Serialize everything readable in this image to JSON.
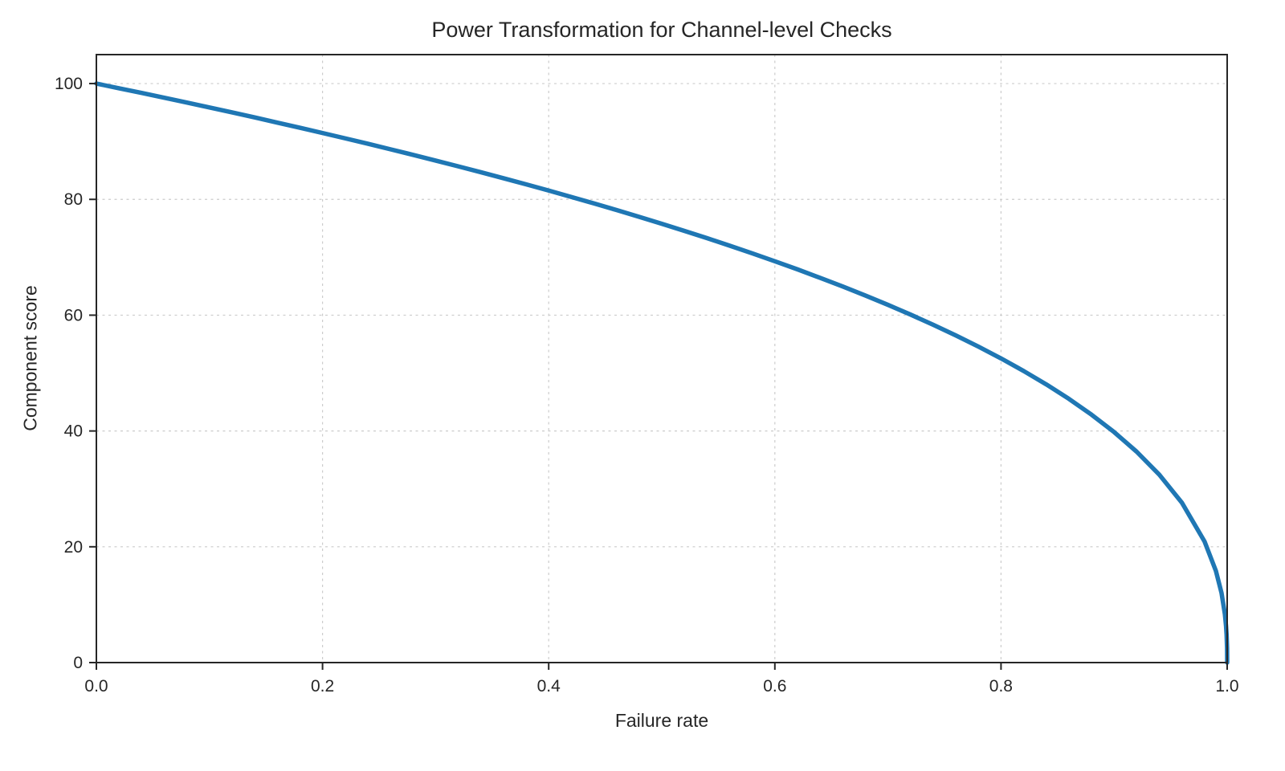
{
  "chart_data": {
    "type": "line",
    "title": "Power Transformation for Channel-level Checks",
    "xlabel": "Failure rate",
    "ylabel": "Component score",
    "xlim": [
      0.0,
      1.0
    ],
    "ylim": [
      0,
      105
    ],
    "grid": true,
    "grid_style": "dashed",
    "grid_color": "#cccccc",
    "axis_color": "#262626",
    "line_color": "#1f77b4",
    "line_width": 5.5,
    "legend": "none",
    "xticks": [
      0.0,
      0.2,
      0.4,
      0.6,
      0.8,
      1.0
    ],
    "xtick_labels": [
      "0.0",
      "0.2",
      "0.4",
      "0.6",
      "0.8",
      "1.0"
    ],
    "yticks": [
      0,
      20,
      40,
      60,
      80,
      100
    ],
    "ytick_labels": [
      "0",
      "20",
      "40",
      "60",
      "80",
      "100"
    ],
    "series": [
      {
        "name": "component-score-curve",
        "x": [
          0,
          0.02,
          0.04,
          0.06,
          0.08,
          0.1,
          0.12,
          0.14,
          0.16,
          0.18,
          0.2,
          0.22,
          0.24,
          0.26,
          0.28,
          0.3,
          0.32,
          0.34,
          0.36,
          0.38,
          0.4,
          0.42,
          0.44,
          0.46,
          0.48,
          0.5,
          0.52,
          0.54,
          0.56,
          0.58,
          0.6,
          0.62,
          0.64,
          0.66,
          0.68,
          0.7,
          0.72,
          0.74,
          0.76,
          0.78,
          0.8,
          0.82,
          0.84,
          0.86,
          0.88,
          0.9,
          0.92,
          0.94,
          0.96,
          0.98,
          0.99,
          0.995,
          0.998,
          0.999,
          0.9995,
          0.9999,
          1.0
        ],
        "y": [
          100,
          99.19,
          98.38,
          97.56,
          96.72,
          95.87,
          95.02,
          94.15,
          93.26,
          92.37,
          91.46,
          90.54,
          89.61,
          88.65,
          87.69,
          86.7,
          85.7,
          84.69,
          83.65,
          82.6,
          81.52,
          80.42,
          79.3,
          78.16,
          76.98,
          75.79,
          74.56,
          73.3,
          72.01,
          70.68,
          69.31,
          67.91,
          66.45,
          64.95,
          63.4,
          61.78,
          60.1,
          58.34,
          56.5,
          54.57,
          52.53,
          50.36,
          48.05,
          45.55,
          42.82,
          39.81,
          36.41,
          32.45,
          27.6,
          20.91,
          15.85,
          12.02,
          8.33,
          6.31,
          4.78,
          2.51,
          0
        ]
      }
    ]
  }
}
